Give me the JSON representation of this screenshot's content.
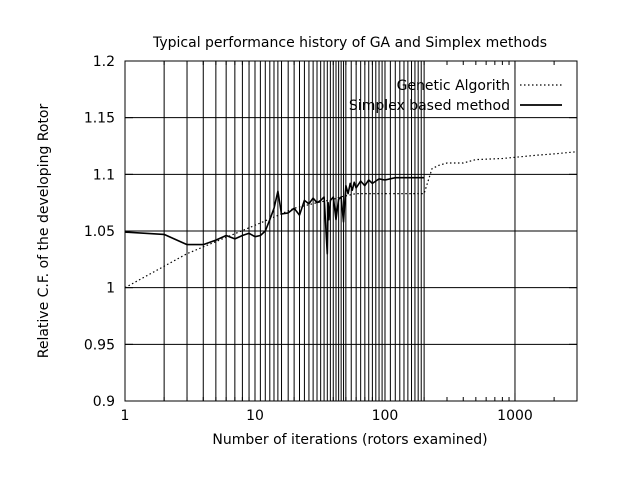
{
  "chart_data": {
    "type": "line",
    "title": "Typical performance history of GA and Simplex methods",
    "xlabel": "Number of iterations (rotors examined)",
    "ylabel": "Relative C.F. of the developing Rotor",
    "x_scale": "log",
    "xlim": [
      1,
      3000
    ],
    "ylim": [
      0.9,
      1.2
    ],
    "x_ticks": [
      1,
      10,
      100,
      1000
    ],
    "x_tick_labels": [
      "1",
      "10",
      "100",
      "1000"
    ],
    "y_ticks": [
      0.9,
      0.95,
      1.0,
      1.05,
      1.1,
      1.15,
      1.2
    ],
    "y_tick_labels": [
      "0.9",
      "0.95",
      "1",
      "1.05",
      "1.1",
      "1.15",
      "1.2"
    ],
    "grid": true,
    "legend_position": "top-right",
    "series": [
      {
        "name": "Genetic Algorith",
        "style": "dotted",
        "x": [
          1,
          3,
          10,
          20,
          30,
          40,
          45,
          50,
          55,
          60,
          70,
          80,
          90,
          100,
          150,
          200,
          230,
          260,
          300,
          400,
          500,
          800,
          1000,
          1500,
          2000,
          3000
        ],
        "y": [
          1.0,
          1.03,
          1.055,
          1.07,
          1.075,
          1.078,
          1.08,
          1.081,
          1.082,
          1.083,
          1.083,
          1.083,
          1.083,
          1.083,
          1.083,
          1.083,
          1.105,
          1.108,
          1.11,
          1.11,
          1.113,
          1.114,
          1.115,
          1.117,
          1.118,
          1.12
        ]
      },
      {
        "name": "Simplex based method",
        "style": "solid",
        "x": [
          1,
          2,
          3,
          4,
          5,
          6,
          7,
          8,
          9,
          10,
          11,
          12,
          13,
          14,
          15,
          16,
          18,
          20,
          22,
          24,
          26,
          28,
          30,
          32,
          34,
          36,
          36.5,
          37,
          38,
          40,
          42,
          44,
          46,
          48,
          50,
          52,
          54,
          56,
          58,
          60,
          65,
          70,
          75,
          80,
          90,
          100,
          120,
          150,
          180,
          200
        ],
        "y": [
          1.049,
          1.047,
          1.038,
          1.038,
          1.042,
          1.046,
          1.043,
          1.046,
          1.048,
          1.045,
          1.046,
          1.05,
          1.06,
          1.07,
          1.085,
          1.065,
          1.066,
          1.07,
          1.064,
          1.077,
          1.074,
          1.079,
          1.075,
          1.077,
          1.08,
          1.03,
          1.075,
          1.06,
          1.077,
          1.08,
          1.06,
          1.078,
          1.08,
          1.058,
          1.09,
          1.083,
          1.092,
          1.086,
          1.093,
          1.088,
          1.094,
          1.09,
          1.095,
          1.092,
          1.096,
          1.095,
          1.097,
          1.097,
          1.097,
          1.097
        ]
      }
    ],
    "simplex_vertical_lines_x": [
      2,
      3,
      4,
      5,
      6,
      7,
      8,
      9,
      11,
      12,
      13,
      14,
      15,
      16,
      18,
      20,
      22,
      24,
      26,
      28,
      30,
      32,
      34,
      36,
      38,
      40,
      42,
      44,
      46,
      48,
      50,
      55,
      60,
      65,
      70,
      75,
      80,
      85,
      90,
      95,
      100,
      110,
      120,
      130,
      140,
      150,
      160,
      170,
      180,
      190,
      200
    ]
  }
}
